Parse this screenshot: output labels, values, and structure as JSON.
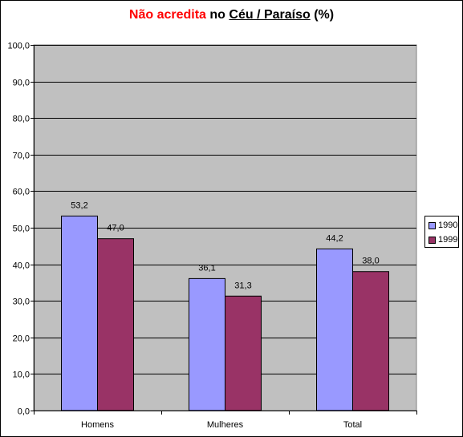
{
  "chart_data": {
    "type": "bar",
    "title_parts": [
      "Não acredita",
      " no ",
      "Céu / Paraíso",
      " (%)"
    ],
    "categories": [
      "Homens",
      "Mulheres",
      "Total"
    ],
    "series": [
      {
        "name": "1990",
        "values": [
          53.2,
          36.1,
          44.2
        ],
        "value_labels": [
          "53,2",
          "36,1",
          "44,2"
        ],
        "color": "#9999ff"
      },
      {
        "name": "1999",
        "values": [
          47.0,
          31.3,
          38.0
        ],
        "value_labels": [
          "47,0",
          "31,3",
          "38,0"
        ],
        "color": "#993366"
      }
    ],
    "ylim": [
      0,
      100
    ],
    "yticks": [
      0,
      10,
      20,
      30,
      40,
      50,
      60,
      70,
      80,
      90,
      100
    ],
    "ytick_labels": [
      "0,0",
      "10,0",
      "20,0",
      "30,0",
      "40,0",
      "50,0",
      "60,0",
      "70,0",
      "80,0",
      "90,0",
      "100,0"
    ],
    "grid": true,
    "legend_position": "right",
    "plot_background": "#c0c0c0",
    "title_highlight_color": "#ff0000"
  }
}
